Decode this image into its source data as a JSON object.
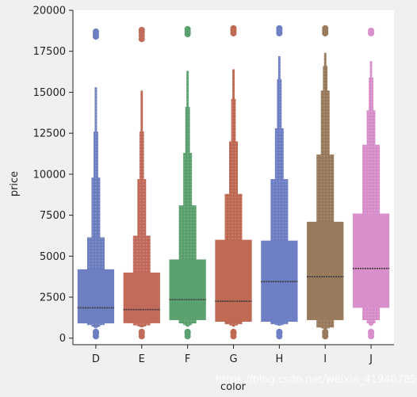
{
  "chart_data": {
    "type": "boxen",
    "xlabel": "color",
    "ylabel": "price",
    "ylim": [
      -400,
      20000
    ],
    "yticks": [
      0,
      2500,
      5000,
      7500,
      10000,
      12500,
      15000,
      17500,
      20000
    ],
    "ytick_labels": [
      "0",
      "2500",
      "5000",
      "7500",
      "10000",
      "12500",
      "15000",
      "17500",
      "20000"
    ],
    "categories": [
      "D",
      "E",
      "F",
      "G",
      "H",
      "I",
      "J"
    ],
    "series": [
      {
        "category": "D",
        "color": "#6d7fc0",
        "median": 1850,
        "boxes": [
          [
            900,
            4200
          ],
          [
            800,
            6150
          ],
          [
            700,
            9800
          ],
          [
            650,
            12600
          ],
          [
            600,
            15300
          ]
        ],
        "outliers_low": [
          120,
          280,
          380
        ],
        "outliers_high": [
          18400,
          18550,
          18700
        ]
      },
      {
        "category": "E",
        "color": "#c36b5b",
        "median": 1740,
        "boxes": [
          [
            910,
            4000
          ],
          [
            780,
            6250
          ],
          [
            720,
            9700
          ],
          [
            680,
            12600
          ],
          [
            660,
            15100
          ]
        ],
        "outliers_low": [
          120,
          280,
          380
        ],
        "outliers_high": [
          18250,
          18450,
          18650,
          18800
        ]
      },
      {
        "category": "F",
        "color": "#5ba16f",
        "median": 2350,
        "boxes": [
          [
            1100,
            4800
          ],
          [
            900,
            8100
          ],
          [
            800,
            11300
          ],
          [
            750,
            14100
          ],
          [
            700,
            16300
          ]
        ],
        "outliers_low": [
          120,
          280,
          380
        ],
        "outliers_high": [
          18550,
          18700,
          18850
        ]
      },
      {
        "category": "G",
        "color": "#c06a54",
        "median": 2250,
        "boxes": [
          [
            1000,
            6000
          ],
          [
            850,
            8800
          ],
          [
            780,
            12000
          ],
          [
            750,
            14600
          ],
          [
            700,
            16400
          ]
        ],
        "outliers_low": [
          120,
          280,
          380
        ],
        "outliers_high": [
          18600,
          18750,
          18900
        ]
      },
      {
        "category": "H",
        "color": "#6f7fc5",
        "median": 3450,
        "boxes": [
          [
            1000,
            5950
          ],
          [
            850,
            9700
          ],
          [
            800,
            12800
          ],
          [
            780,
            15800
          ],
          [
            760,
            17200
          ]
        ],
        "outliers_low": [
          120,
          280,
          380
        ],
        "outliers_high": [
          18600,
          18750,
          18900
        ]
      },
      {
        "category": "I",
        "color": "#9a7a5c",
        "median": 3750,
        "boxes": [
          [
            1100,
            7100
          ],
          [
            650,
            11200
          ],
          [
            600,
            15100
          ],
          [
            570,
            16600
          ],
          [
            560,
            17400
          ]
        ],
        "outliers_low": [
          120,
          280,
          380
        ],
        "outliers_high": [
          18600,
          18750,
          18900
        ]
      },
      {
        "category": "J",
        "color": "#d88fcc",
        "median": 4250,
        "boxes": [
          [
            1850,
            7600
          ],
          [
            1100,
            11800
          ],
          [
            900,
            13900
          ],
          [
            800,
            15900
          ],
          [
            750,
            16900
          ]
        ],
        "outliers_low": [
          120,
          280,
          380
        ],
        "outliers_high": [
          18600,
          18750
        ]
      }
    ],
    "grid": false,
    "legend": "none"
  },
  "watermark": "https://blog.csdn.net/weixin_41940785"
}
